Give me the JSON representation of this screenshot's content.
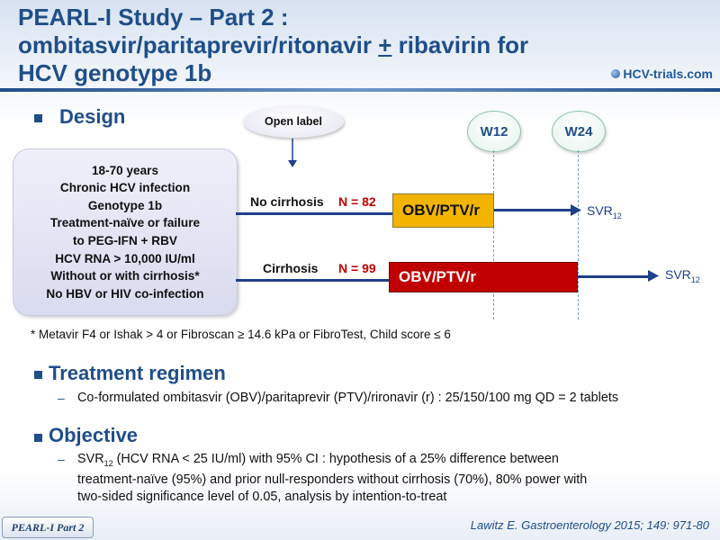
{
  "title": {
    "line1": "PEARL-I Study – Part 2 :",
    "line2a": "ombitasvir/paritaprevir/ritonavir ",
    "line2b": "+",
    "line2c": " ribavirin for",
    "line3": "HCV genotype 1b"
  },
  "logo": "HCV-trials.com",
  "design": {
    "heading": "Design",
    "open_label": "Open label",
    "population": [
      "18-70 years",
      "Chronic HCV infection",
      "Genotype 1b",
      "Treatment-naïve or failure",
      "to PEG-IFN + RBV",
      "HCV RNA > 10,000 IU/ml",
      "Without or with cirrhosis*",
      "No HBV or HIV co-infection"
    ],
    "weeks": [
      "W12",
      "W24"
    ],
    "arms": [
      {
        "label": "No cirrhosis",
        "n": "N = 82",
        "regimen": "OBV/PTV/r",
        "endpoint": "SVR",
        "endpoint_sub": "12"
      },
      {
        "label": "Cirrhosis",
        "n": "N = 99",
        "regimen": "OBV/PTV/r",
        "endpoint": "SVR",
        "endpoint_sub": "12"
      }
    ],
    "footnote": "* Metavir F4 or Ishak > 4 or Fibroscan ≥ 14.6 kPa or FibroTest, Child score ≤ 6"
  },
  "treatment": {
    "heading": "Treatment regimen",
    "dash": "–",
    "text": "Co-formulated ombitasvir (OBV)/paritaprevir (PTV)/rironavir (r) : 25/150/100 mg QD = 2 tablets"
  },
  "objective": {
    "heading": "Objective",
    "dash": "–",
    "svr": "SVR",
    "svr_sub": "12",
    "line1": " (HCV RNA < 25 IU/ml) with 95% CI : hypothesis of a 25% difference between",
    "line2": "treatment-naïve (95%) and prior null-responders  without cirrhosis (70%), 80% power with",
    "line3": "two-sided significance  level of 0.05, analysis by intention-to-treat"
  },
  "footer": {
    "tag": "PEARL-I Part 2",
    "reference": "Lawitz  E. Gastroenterology 2015; 149: 971-80"
  },
  "colors": {
    "title_blue": "#1f4e89",
    "bar_yellow": "#f2b400",
    "bar_red": "#c00000",
    "n_red": "#c00000"
  }
}
